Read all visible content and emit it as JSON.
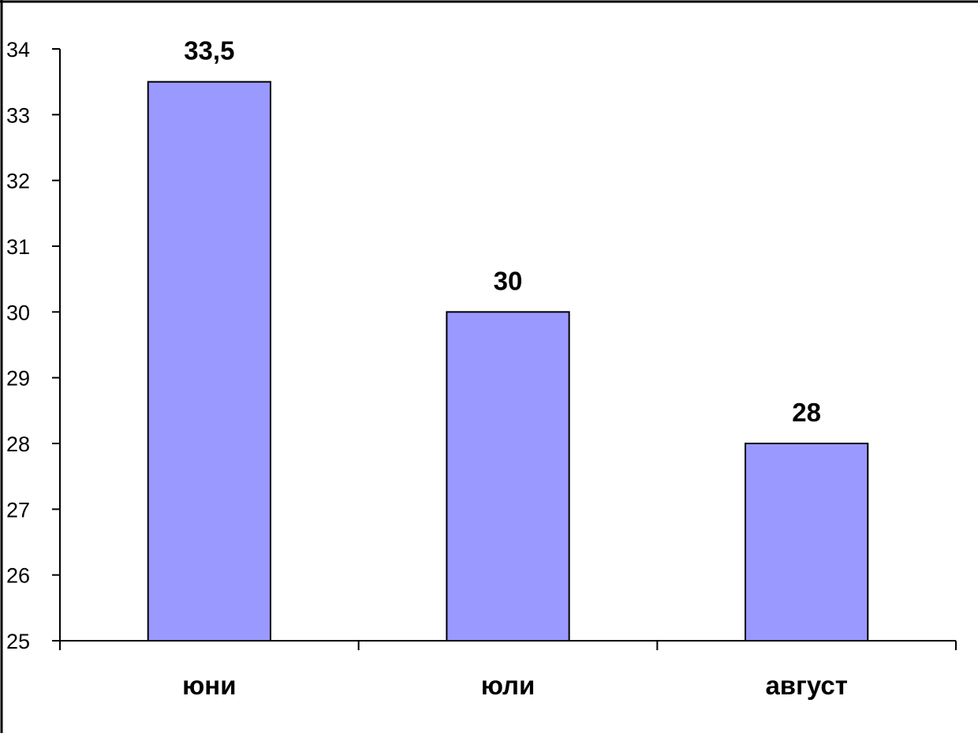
{
  "chart_data": {
    "type": "bar",
    "categories": [
      "юни",
      "юли",
      "август"
    ],
    "values": [
      33.5,
      30,
      28
    ],
    "data_labels": [
      "33,5",
      "30",
      "28"
    ],
    "ylim": [
      25,
      34
    ],
    "yticks": [
      "25",
      "26",
      "27",
      "28",
      "29",
      "30",
      "31",
      "32",
      "33",
      "34"
    ],
    "grid": false,
    "legend": "none",
    "bar_color": "#9999ff",
    "bar_edge_color": "#000000"
  }
}
